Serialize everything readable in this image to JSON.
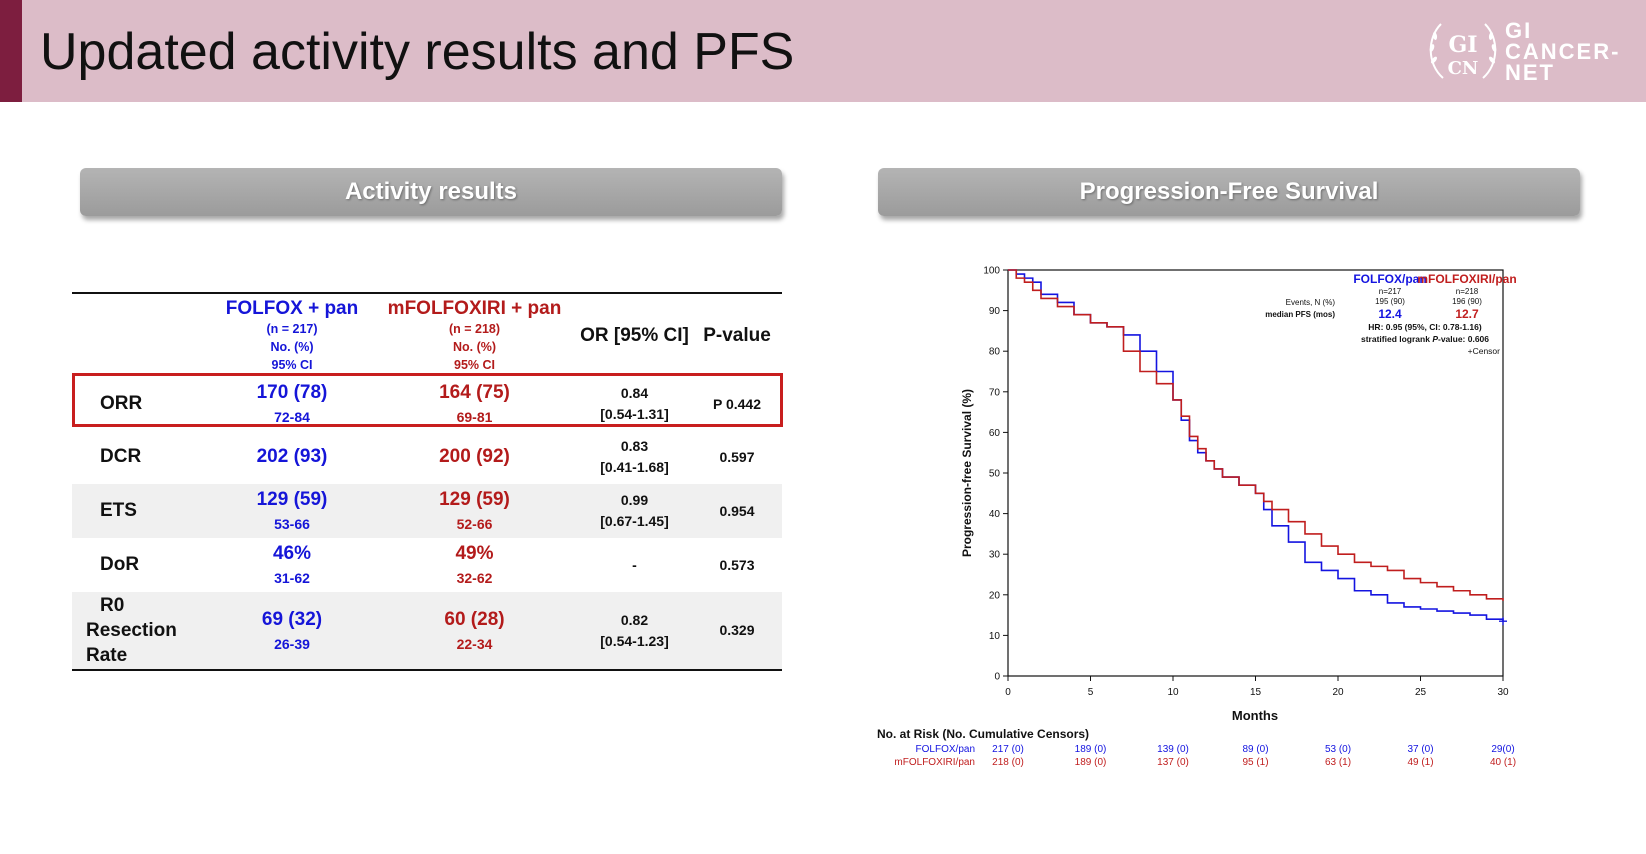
{
  "header": {
    "title": "Updated activity results and PFS",
    "logo_mark_top": "GI",
    "logo_mark_bottom": "CN",
    "logo_lines": [
      "GI",
      "CANCER-",
      "NET"
    ]
  },
  "sections": {
    "left": "Activity results",
    "right": "Progression-Free Survival"
  },
  "table": {
    "columns": [
      {
        "title": "FOLFOX + pan",
        "n": "(n = 217)",
        "unit": "No. (%)",
        "ci": "95% CI"
      },
      {
        "title": "mFOLFOXIRI + pan",
        "n": "(n = 218)",
        "unit": "No. (%)",
        "ci": "95% CI"
      },
      {
        "title": "OR [95% CI]"
      },
      {
        "title": "P-value"
      }
    ],
    "rows": [
      {
        "label": "ORR",
        "folfox": "170 (78)",
        "folfox_ci": "72-84",
        "mfolfoxiri": "164 (75)",
        "mfolfoxiri_ci": "69-81",
        "or": "0.84",
        "or_ci": "[0.54-1.31]",
        "p": "P 0.442",
        "highlighted": true
      },
      {
        "label": "DCR",
        "folfox": "202 (93)",
        "folfox_ci": "",
        "mfolfoxiri": "200 (92)",
        "mfolfoxiri_ci": "",
        "or": "0.83",
        "or_ci": "[0.41-1.68]",
        "p": "0.597"
      },
      {
        "label": "ETS",
        "folfox": "129 (59)",
        "folfox_ci": "53-66",
        "mfolfoxiri": "129 (59)",
        "mfolfoxiri_ci": "52-66",
        "or": "0.99",
        "or_ci": "[0.67-1.45]",
        "p": "0.954"
      },
      {
        "label": "DoR",
        "folfox": "46%",
        "folfox_ci": "31-62",
        "mfolfoxiri": "49%",
        "mfolfoxiri_ci": "32-62",
        "or": "-",
        "or_ci": "",
        "p": "0.573"
      },
      {
        "label_lines": [
          "R0",
          "Resection",
          "Rate"
        ],
        "folfox": "69 (32)",
        "folfox_ci": "26-39",
        "mfolfoxiri": "60 (28)",
        "mfolfoxiri_ci": "22-34",
        "or": "0.82",
        "or_ci": "[0.54-1.23]",
        "p": "0.329"
      }
    ]
  },
  "chart_data": {
    "type": "line",
    "xlabel": "Months",
    "ylabel": "Progression-free Survival (%)",
    "xlim": [
      0,
      30
    ],
    "ylim": [
      0,
      100
    ],
    "xticks": [
      0,
      5,
      10,
      15,
      20,
      25,
      30
    ],
    "yticks": [
      0,
      10,
      20,
      30,
      40,
      50,
      60,
      70,
      80,
      90,
      100
    ],
    "colors": {
      "folfox": "#1414e0",
      "mfolfoxiri": "#c01e1e"
    },
    "series": [
      {
        "name": "FOLFOX/pan",
        "x": [
          0,
          0.5,
          1,
          1.5,
          2,
          3,
          4,
          5,
          6,
          7,
          8,
          9,
          10,
          10.5,
          11,
          11.5,
          12,
          12.5,
          13,
          14,
          15,
          15.5,
          16,
          17,
          18,
          19,
          20,
          21,
          22,
          23,
          24,
          25,
          26,
          27,
          28,
          29,
          30
        ],
        "y": [
          100,
          99,
          98,
          97,
          94,
          92,
          89,
          87,
          86,
          84,
          80,
          75,
          68,
          63,
          58,
          55,
          53,
          51,
          49,
          47,
          45,
          41,
          37,
          33,
          28,
          26,
          24,
          21,
          20,
          18,
          17,
          16.5,
          16,
          15.5,
          15,
          14,
          13.5
        ]
      },
      {
        "name": "mFOLFOXIRI/pan",
        "x": [
          0,
          0.5,
          1,
          1.5,
          2,
          3,
          4,
          5,
          6,
          7,
          8,
          9,
          10,
          10.5,
          11,
          11.5,
          12,
          12.5,
          13,
          14,
          15,
          15.5,
          16,
          17,
          18,
          19,
          20,
          21,
          22,
          23,
          24,
          25,
          26,
          27,
          28,
          29,
          30
        ],
        "y": [
          100,
          98,
          97,
          95,
          93,
          91,
          89,
          87,
          86,
          80,
          75,
          72,
          68,
          64,
          59,
          56,
          53,
          51,
          49,
          47,
          45,
          43,
          41,
          38,
          35,
          32,
          30,
          28,
          27,
          26,
          24,
          23,
          22,
          21,
          20,
          19,
          18.5
        ]
      }
    ],
    "censor_legend": "+Censor",
    "annotation": {
      "folfox_label": "FOLFOX/pan",
      "mfolfoxiri_label": "mFOLFOXIRI/pan",
      "folfox_n": "n=217",
      "mfolfoxiri_n": "n=218",
      "events_label": "Events, N (%)",
      "folfox_events": "195 (90)",
      "mfolfoxiri_events": "196 (90)",
      "median_label": "median PFS (mos)",
      "folfox_median": "12.4",
      "mfolfoxiri_median": "12.7",
      "hr_text": "HR: 0.95 (95%, CI: 0.78-1.16)",
      "logrank_prefix": "stratified logrank ",
      "logrank_p": "P",
      "logrank_suffix": "-value: 0.606"
    },
    "risk_table": {
      "title": "No. at Risk (No. Cumulative Censors)",
      "rows": [
        {
          "name": "FOLFOX/pan",
          "values": [
            "217 (0)",
            "189 (0)",
            "139 (0)",
            "89 (0)",
            "53 (0)",
            "37 (0)",
            "29(0)"
          ]
        },
        {
          "name": "mFOLFOXIRI/pan",
          "values": [
            "218 (0)",
            "189 (0)",
            "137 (0)",
            "95 (1)",
            "63 (1)",
            "49 (1)",
            "40 (1)"
          ]
        }
      ]
    }
  }
}
